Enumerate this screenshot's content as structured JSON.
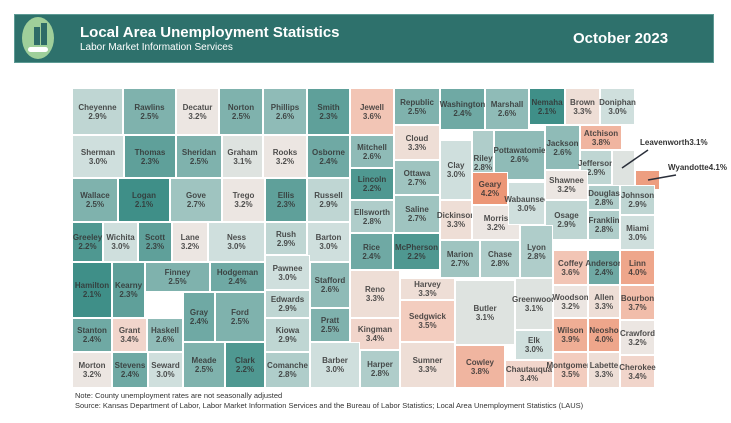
{
  "header": {
    "title": "Local Area Unemployment Statistics",
    "subtitle": "Labor Market Information Services",
    "period": "October 2023",
    "logo_text": "$ % I"
  },
  "colors": {
    "header_bg": "#2e716c",
    "low": "#3f8f88",
    "mid": "#e9e6e3",
    "high": "#ec9a79"
  },
  "counties": [
    {
      "name": "Cheyenne",
      "rate": "2.9%"
    },
    {
      "name": "Rawlins",
      "rate": "2.5%"
    },
    {
      "name": "Decatur",
      "rate": "3.2%"
    },
    {
      "name": "Norton",
      "rate": "2.5%"
    },
    {
      "name": "Phillips",
      "rate": "2.6%"
    },
    {
      "name": "Smith",
      "rate": "2.3%"
    },
    {
      "name": "Jewell",
      "rate": "3.6%"
    },
    {
      "name": "Republic",
      "rate": "2.5%"
    },
    {
      "name": "Washington",
      "rate": "2.4%"
    },
    {
      "name": "Marshall",
      "rate": "2.6%"
    },
    {
      "name": "Nemaha",
      "rate": "2.1%"
    },
    {
      "name": "Brown",
      "rate": "3.3%"
    },
    {
      "name": "Doniphan",
      "rate": "3.0%"
    },
    {
      "name": "Sherman",
      "rate": "3.0%"
    },
    {
      "name": "Thomas",
      "rate": "2.3%"
    },
    {
      "name": "Sheridan",
      "rate": "2.5%"
    },
    {
      "name": "Graham",
      "rate": "3.1%"
    },
    {
      "name": "Rooks",
      "rate": "3.2%"
    },
    {
      "name": "Osborne",
      "rate": "2.4%"
    },
    {
      "name": "Mitchell",
      "rate": "2.6%"
    },
    {
      "name": "Cloud",
      "rate": "3.3%"
    },
    {
      "name": "Clay",
      "rate": "3.0%"
    },
    {
      "name": "Riley",
      "rate": "2.8%"
    },
    {
      "name": "Pottawatomie",
      "rate": "2.6%"
    },
    {
      "name": "Jackson",
      "rate": "2.6%"
    },
    {
      "name": "Atchison",
      "rate": "3.8%"
    },
    {
      "name": "Jefferson",
      "rate": "2.9%"
    },
    {
      "name": "Leavenworth",
      "rate": "3.1%"
    },
    {
      "name": "Wyandotte",
      "rate": "4.1%"
    },
    {
      "name": "Wallace",
      "rate": "2.5%"
    },
    {
      "name": "Logan",
      "rate": "2.1%"
    },
    {
      "name": "Gove",
      "rate": "2.7%"
    },
    {
      "name": "Trego",
      "rate": "3.2%"
    },
    {
      "name": "Ellis",
      "rate": "2.3%"
    },
    {
      "name": "Russell",
      "rate": "2.9%"
    },
    {
      "name": "Lincoln",
      "rate": "2.2%"
    },
    {
      "name": "Ellsworth",
      "rate": "2.8%"
    },
    {
      "name": "Ottawa",
      "rate": "2.7%"
    },
    {
      "name": "Saline",
      "rate": "2.7%"
    },
    {
      "name": "Dickinson",
      "rate": "3.3%"
    },
    {
      "name": "Geary",
      "rate": "4.2%"
    },
    {
      "name": "Morris",
      "rate": "3.2%"
    },
    {
      "name": "Wabaunsee",
      "rate": "3.0%"
    },
    {
      "name": "Shawnee",
      "rate": "3.2%"
    },
    {
      "name": "Osage",
      "rate": "2.9%"
    },
    {
      "name": "Douglas",
      "rate": "2.8%"
    },
    {
      "name": "Johnson",
      "rate": "2.9%"
    },
    {
      "name": "Franklin",
      "rate": "2.8%"
    },
    {
      "name": "Miami",
      "rate": "3.0%"
    },
    {
      "name": "Greeley",
      "rate": "2.2%"
    },
    {
      "name": "Wichita",
      "rate": "3.0%"
    },
    {
      "name": "Scott",
      "rate": "2.3%"
    },
    {
      "name": "Lane",
      "rate": "3.2%"
    },
    {
      "name": "Ness",
      "rate": "3.0%"
    },
    {
      "name": "Rush",
      "rate": "2.9%"
    },
    {
      "name": "Barton",
      "rate": "3.0%"
    },
    {
      "name": "Rice",
      "rate": "2.4%"
    },
    {
      "name": "McPherson",
      "rate": "2.2%"
    },
    {
      "name": "Marion",
      "rate": "2.7%"
    },
    {
      "name": "Chase",
      "rate": "2.8%"
    },
    {
      "name": "Lyon",
      "rate": "2.8%"
    },
    {
      "name": "Coffey",
      "rate": "3.6%"
    },
    {
      "name": "Anderson",
      "rate": "2.4%"
    },
    {
      "name": "Linn",
      "rate": "4.0%"
    },
    {
      "name": "Hamilton",
      "rate": "2.1%"
    },
    {
      "name": "Kearny",
      "rate": "2.3%"
    },
    {
      "name": "Finney",
      "rate": "2.5%"
    },
    {
      "name": "Hodgeman",
      "rate": "2.4%"
    },
    {
      "name": "Pawnee",
      "rate": "3.0%"
    },
    {
      "name": "Edwards",
      "rate": "2.9%"
    },
    {
      "name": "Stafford",
      "rate": "2.6%"
    },
    {
      "name": "Reno",
      "rate": "3.3%"
    },
    {
      "name": "Harvey",
      "rate": "3.3%"
    },
    {
      "name": "Butler",
      "rate": "3.1%"
    },
    {
      "name": "Greenwood",
      "rate": "3.1%"
    },
    {
      "name": "Woodson",
      "rate": "3.2%"
    },
    {
      "name": "Allen",
      "rate": "3.3%"
    },
    {
      "name": "Bourbon",
      "rate": "3.7%"
    },
    {
      "name": "Stanton",
      "rate": "2.4%"
    },
    {
      "name": "Grant",
      "rate": "3.4%"
    },
    {
      "name": "Haskell",
      "rate": "2.6%"
    },
    {
      "name": "Gray",
      "rate": "2.4%"
    },
    {
      "name": "Ford",
      "rate": "2.5%"
    },
    {
      "name": "Kiowa",
      "rate": "2.9%"
    },
    {
      "name": "Pratt",
      "rate": "2.5%"
    },
    {
      "name": "Kingman",
      "rate": "3.4%"
    },
    {
      "name": "Sedgwick",
      "rate": "3.5%"
    },
    {
      "name": "Elk",
      "rate": "3.0%"
    },
    {
      "name": "Wilson",
      "rate": "3.9%"
    },
    {
      "name": "Neosho",
      "rate": "4.0%"
    },
    {
      "name": "Crawford",
      "rate": "3.2%"
    },
    {
      "name": "Morton",
      "rate": "3.2%"
    },
    {
      "name": "Stevens",
      "rate": "2.4%"
    },
    {
      "name": "Seward",
      "rate": "3.0%"
    },
    {
      "name": "Meade",
      "rate": "2.5%"
    },
    {
      "name": "Clark",
      "rate": "2.2%"
    },
    {
      "name": "Comanche",
      "rate": "2.8%"
    },
    {
      "name": "Barber",
      "rate": "3.0%"
    },
    {
      "name": "Harper",
      "rate": "2.8%"
    },
    {
      "name": "Sumner",
      "rate": "3.3%"
    },
    {
      "name": "Cowley",
      "rate": "3.8%"
    },
    {
      "name": "Chautauqua",
      "rate": "3.4%"
    },
    {
      "name": "Montgomery",
      "rate": "3.5%"
    },
    {
      "name": "Labette",
      "rate": "3.3%"
    },
    {
      "name": "Cherokee",
      "rate": "3.4%"
    }
  ],
  "footer": {
    "note": "Note: County unemployment rates are not seasonally adjusted",
    "source": "Source: Kansas Department of Labor, Labor Market Information Services and the Bureau of Labor Statistics; Local Area Unemployment Statistics (LAUS)"
  }
}
